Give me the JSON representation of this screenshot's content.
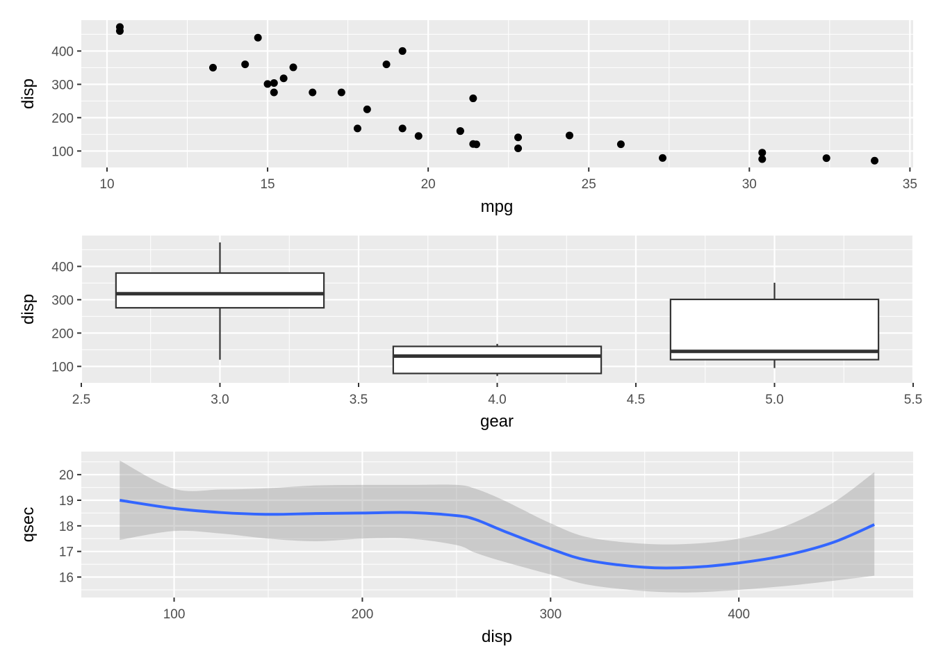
{
  "chart_data": [
    {
      "type": "scatter",
      "xlabel": "mpg",
      "ylabel": "disp",
      "xlim": [
        9.2,
        35.1
      ],
      "ylim": [
        50.7,
        492.6
      ],
      "xticks": [
        10,
        15,
        20,
        25,
        30,
        35
      ],
      "xtick_labels": [
        "10",
        "15",
        "20",
        "25",
        "30",
        "35"
      ],
      "yticks": [
        100,
        200,
        300,
        400
      ],
      "ytick_labels": [
        "100",
        "200",
        "300",
        "400"
      ],
      "grid": true,
      "point_color": "#000000",
      "points": [
        {
          "x": 21.0,
          "y": 160
        },
        {
          "x": 21.0,
          "y": 160
        },
        {
          "x": 22.8,
          "y": 108
        },
        {
          "x": 21.4,
          "y": 258
        },
        {
          "x": 18.7,
          "y": 360
        },
        {
          "x": 18.1,
          "y": 225
        },
        {
          "x": 14.3,
          "y": 360
        },
        {
          "x": 24.4,
          "y": 146.7
        },
        {
          "x": 22.8,
          "y": 140.8
        },
        {
          "x": 19.2,
          "y": 167.6
        },
        {
          "x": 17.8,
          "y": 167.6
        },
        {
          "x": 16.4,
          "y": 275.8
        },
        {
          "x": 17.3,
          "y": 275.8
        },
        {
          "x": 15.2,
          "y": 275.8
        },
        {
          "x": 10.4,
          "y": 472
        },
        {
          "x": 10.4,
          "y": 460
        },
        {
          "x": 14.7,
          "y": 440
        },
        {
          "x": 32.4,
          "y": 78.7
        },
        {
          "x": 30.4,
          "y": 75.7
        },
        {
          "x": 33.9,
          "y": 71.1
        },
        {
          "x": 21.5,
          "y": 120.1
        },
        {
          "x": 15.5,
          "y": 318
        },
        {
          "x": 15.2,
          "y": 304
        },
        {
          "x": 13.3,
          "y": 350
        },
        {
          "x": 19.2,
          "y": 400
        },
        {
          "x": 27.3,
          "y": 79
        },
        {
          "x": 26.0,
          "y": 120.3
        },
        {
          "x": 30.4,
          "y": 95.1
        },
        {
          "x": 15.8,
          "y": 351
        },
        {
          "x": 19.7,
          "y": 145
        },
        {
          "x": 15.0,
          "y": 301
        },
        {
          "x": 21.4,
          "y": 121
        }
      ]
    },
    {
      "type": "box",
      "xlabel": "gear",
      "ylabel": "disp",
      "xlim": [
        2.5,
        5.5
      ],
      "ylim": [
        50.7,
        492.6
      ],
      "xticks": [
        2.5,
        3.0,
        3.5,
        4.0,
        4.5,
        5.0,
        5.5
      ],
      "xtick_labels": [
        "2.5",
        "3.0",
        "3.5",
        "4.0",
        "4.5",
        "5.0",
        "5.5"
      ],
      "yticks": [
        100,
        200,
        300,
        400
      ],
      "ytick_labels": [
        "100",
        "200",
        "300",
        "400"
      ],
      "grid": true,
      "box_fill": "#ffffff",
      "box_stroke": "#333333",
      "boxes": [
        {
          "x": 3,
          "lower_whisker": 120.1,
          "q1": 275.8,
          "median": 318,
          "q3": 380,
          "upper_whisker": 472
        },
        {
          "x": 4,
          "lower_whisker": 71.1,
          "q1": 78.85,
          "median": 130.9,
          "q3": 160,
          "upper_whisker": 167.6
        },
        {
          "x": 5,
          "lower_whisker": 95.1,
          "q1": 120.3,
          "median": 145,
          "q3": 301,
          "upper_whisker": 351
        }
      ]
    },
    {
      "type": "line",
      "xlabel": "disp",
      "ylabel": "qsec",
      "xlim": [
        50.7,
        492.6
      ],
      "ylim": [
        15.2,
        20.9
      ],
      "xticks": [
        100,
        200,
        300,
        400
      ],
      "xtick_labels": [
        "100",
        "200",
        "300",
        "400"
      ],
      "yticks": [
        16,
        17,
        18,
        19,
        20
      ],
      "ytick_labels": [
        "16",
        "17",
        "18",
        "19",
        "20"
      ],
      "grid": true,
      "smooth": true,
      "line_color": "#3366ff",
      "band_color": "#999999",
      "x": [
        71.1,
        100,
        125,
        150,
        175,
        200,
        225,
        250,
        260,
        275,
        300,
        320,
        350,
        375,
        400,
        425,
        450,
        472
      ],
      "y": [
        19.0,
        18.68,
        18.52,
        18.45,
        18.48,
        18.5,
        18.52,
        18.4,
        18.25,
        17.8,
        17.1,
        16.65,
        16.38,
        16.38,
        16.55,
        16.85,
        17.35,
        18.05
      ],
      "ymin": [
        17.45,
        17.8,
        17.7,
        17.5,
        17.4,
        17.5,
        17.5,
        17.25,
        16.95,
        16.6,
        16.1,
        15.7,
        15.45,
        15.4,
        15.5,
        15.65,
        15.85,
        16.05
      ],
      "ymax": [
        20.55,
        19.45,
        19.42,
        19.47,
        19.58,
        19.6,
        19.6,
        19.6,
        19.45,
        19.0,
        18.1,
        17.55,
        17.3,
        17.3,
        17.5,
        18.0,
        18.9,
        20.1
      ]
    }
  ]
}
